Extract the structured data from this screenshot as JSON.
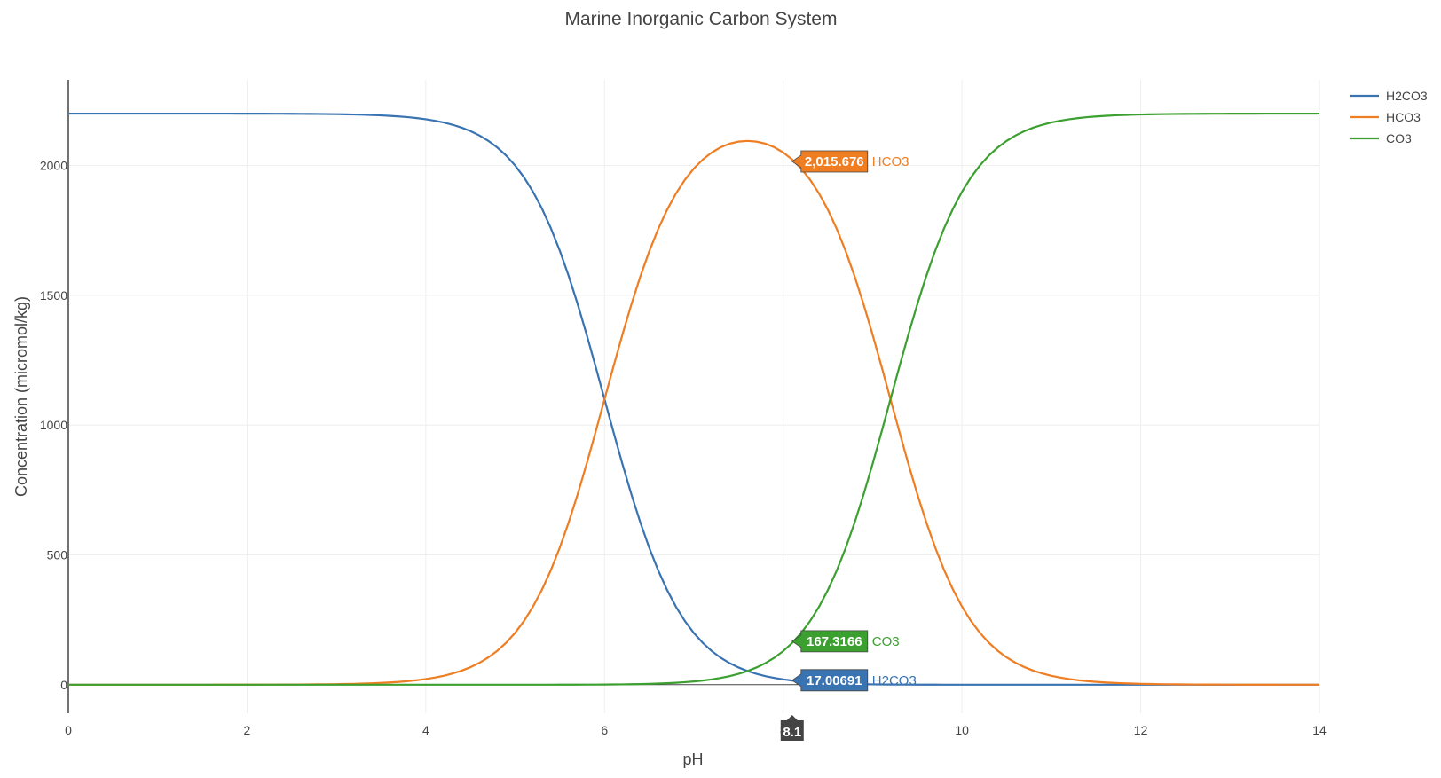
{
  "chart_data": {
    "type": "line",
    "title": "Marine Inorganic Carbon System",
    "xlabel": "pH",
    "ylabel": "Concentration (micromol/kg)",
    "xlim": [
      0,
      14
    ],
    "ylim": [
      -110,
      2330
    ],
    "xticks": [
      "0",
      "2",
      "4",
      "6",
      "8",
      "10",
      "12",
      "14"
    ],
    "yticks": [
      "0",
      "500",
      "1000",
      "1500",
      "2000"
    ],
    "grid": true,
    "legend": "top-right",
    "total_dic": 2200,
    "pK1": 6.0,
    "pK2": 9.2,
    "series": [
      {
        "name": "H2CO3",
        "color": "#3a73b2",
        "species": 0
      },
      {
        "name": "HCO3",
        "color": "#ef7d22",
        "species": 1
      },
      {
        "name": "CO3",
        "color": "#3ba02f",
        "species": 2
      }
    ],
    "hover": {
      "x": 8.1,
      "x_label": "8.1",
      "points": [
        {
          "series": "HCO3",
          "value_label": "2,015.676",
          "color": "#ef7d22",
          "y": 2015.676
        },
        {
          "series": "CO3",
          "value_label": "167.3166",
          "color": "#3ba02f",
          "y": 167.3166
        },
        {
          "series": "H2CO3",
          "value_label": "17.00691",
          "color": "#3a73b2",
          "y": 17.00691
        }
      ]
    }
  }
}
